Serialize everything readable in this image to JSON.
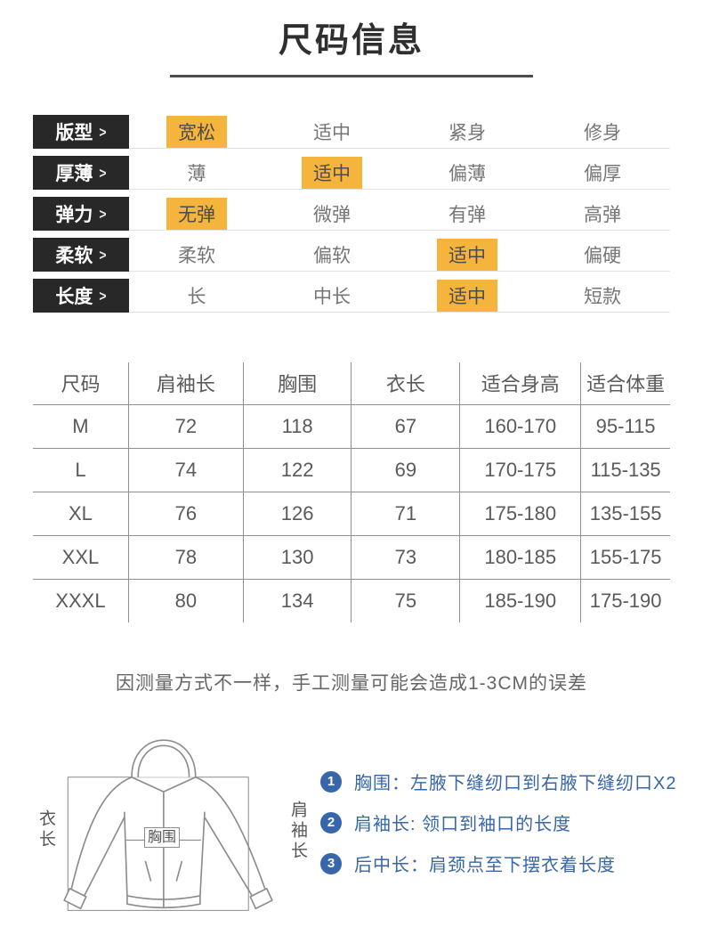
{
  "page": {
    "title": "尺码信息",
    "note": "因测量方式不一样，手工测量可能会造成1-3CM的误差"
  },
  "attributes": {
    "label_bg": "#282828",
    "highlight_color": "#f5b43c",
    "rows": [
      {
        "label": "版型",
        "arrow": ">",
        "options": [
          "宽松",
          "适中",
          "紧身",
          "修身"
        ],
        "highlighted": 0
      },
      {
        "label": "厚薄",
        "arrow": ">",
        "options": [
          "薄",
          "适中",
          "偏薄",
          "偏厚"
        ],
        "highlighted": 1
      },
      {
        "label": "弹力",
        "arrow": ">",
        "options": [
          "无弹",
          "微弹",
          "有弹",
          "高弹"
        ],
        "highlighted": 0
      },
      {
        "label": "柔软",
        "arrow": ">",
        "options": [
          "柔软",
          "偏软",
          "适中",
          "偏硬"
        ],
        "highlighted": 2
      },
      {
        "label": "长度",
        "arrow": ">",
        "options": [
          "长",
          "中长",
          "适中",
          "短款"
        ],
        "highlighted": 2
      }
    ]
  },
  "size_table": {
    "columns": [
      "尺码",
      "肩袖长",
      "胸围",
      "衣长",
      "适合身高",
      "适合体重"
    ],
    "rows": [
      [
        "M",
        "72",
        "118",
        "67",
        "160-170",
        "95-115"
      ],
      [
        "L",
        "74",
        "122",
        "69",
        "170-175",
        "115-135"
      ],
      [
        "XL",
        "76",
        "126",
        "71",
        "175-180",
        "135-155"
      ],
      [
        "XXL",
        "78",
        "130",
        "73",
        "180-185",
        "155-175"
      ],
      [
        "XXXL",
        "80",
        "134",
        "75",
        "185-190",
        "175-190"
      ]
    ]
  },
  "diagram": {
    "accent_color": "#3766ab",
    "labels": {
      "garment_length": "衣长",
      "shoulder_sleeve": "肩袖长",
      "chest": "胸围"
    },
    "measurements": [
      {
        "num": "1",
        "text": "胸围：左腋下缝纫口到右腋下缝纫口X2"
      },
      {
        "num": "2",
        "text": "肩袖长: 领口到袖口的长度"
      },
      {
        "num": "3",
        "text": "后中长：肩颈点至下摆衣着长度"
      }
    ]
  }
}
